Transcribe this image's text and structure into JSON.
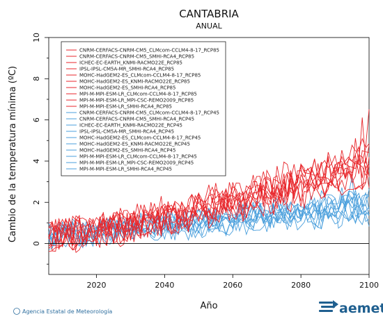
{
  "chart_data": {
    "type": "line",
    "title": "CANTABRIA",
    "subtitle": "ANUAL",
    "xlabel": "Año",
    "ylabel": "Cambio de la temperatura mínima (ºC)",
    "xlim": [
      2006,
      2100
    ],
    "ylim": [
      -1.5,
      10
    ],
    "xticks": [
      2020,
      2040,
      2060,
      2080,
      2100
    ],
    "yticks": [
      0,
      2,
      4,
      6,
      8,
      10
    ],
    "grid": false,
    "legend_position": "top-left",
    "reference_line_y": 0,
    "rcp85_color": "#e8262b",
    "rcp45_color": "#4a9fdc",
    "series": [
      {
        "name": "CNRM-CERFACS-CNRM-CM5_CLMcom-CCLM4-8-17_RCP85",
        "scenario": "rcp85",
        "start": 0.4,
        "end": 4.0,
        "peak": 5.2
      },
      {
        "name": "CNRM-CERFACS-CNRM-CM5_SMHI-RCA4_RCP85",
        "scenario": "rcp85",
        "start": 0.3,
        "end": 3.8,
        "peak": 5.0
      },
      {
        "name": "ICHEC-EC-EARTH_KNMI-RACMO22E_RCP85",
        "scenario": "rcp85",
        "start": 0.5,
        "end": 3.5,
        "peak": 4.8
      },
      {
        "name": "IPSL-IPSL-CM5A-MR_SMHI-RCA4_RCP85",
        "scenario": "rcp85",
        "start": 0.6,
        "end": 4.6,
        "peak": 6.7
      },
      {
        "name": "MOHC-HadGEM2-ES_CLMcom-CCLM4-8-17_RCP85",
        "scenario": "rcp85",
        "start": 0.4,
        "end": 4.2,
        "peak": 6.0
      },
      {
        "name": "MOHC-HadGEM2-ES_KNMI-RACMO22E_RCP85",
        "scenario": "rcp85",
        "start": 0.5,
        "end": 4.4,
        "peak": 5.9
      },
      {
        "name": "MOHC-HadGEM2-ES_SMHI-RCA4_RCP85",
        "scenario": "rcp85",
        "start": 0.4,
        "end": 4.1,
        "peak": 5.6
      },
      {
        "name": "MPI-M-MPI-ESM-LR_CLMcom-CCLM4-8-17_RCP85",
        "scenario": "rcp85",
        "start": 0.3,
        "end": 3.3,
        "peak": 4.6
      },
      {
        "name": "MPI-M-MPI-ESM-LR_MPI-CSC-REMO2009_RCP85",
        "scenario": "rcp85",
        "start": 0.3,
        "end": 3.4,
        "peak": 4.7
      },
      {
        "name": "MPI-M-MPI-ESM-LR_SMHI-RCA4_RCP85",
        "scenario": "rcp85",
        "start": 0.2,
        "end": 3.2,
        "peak": 4.4
      },
      {
        "name": "CNRM-CERFACS-CNRM-CM5_CLMcom-CCLM4-8-17_RCP45",
        "scenario": "rcp45",
        "start": 0.4,
        "end": 2.0,
        "peak": 2.6
      },
      {
        "name": "CNRM-CERFACS-CNRM-CM5_SMHI-RCA4_RCP45",
        "scenario": "rcp45",
        "start": 0.3,
        "end": 1.8,
        "peak": 2.4
      },
      {
        "name": "ICHEC-EC-EARTH_KNMI-RACMO22E_RCP45",
        "scenario": "rcp45",
        "start": 0.4,
        "end": 1.6,
        "peak": 2.3
      },
      {
        "name": "IPSL-IPSL-CM5A-MR_SMHI-RCA4_RCP45",
        "scenario": "rcp45",
        "start": 0.5,
        "end": 2.1,
        "peak": 2.9
      },
      {
        "name": "MOHC-HadGEM2-ES_CLMcom-CCLM4-8-17_RCP45",
        "scenario": "rcp45",
        "start": 0.4,
        "end": 2.2,
        "peak": 2.8
      },
      {
        "name": "MOHC-HadGEM2-ES_KNMI-RACMO22E_RCP45",
        "scenario": "rcp45",
        "start": 0.3,
        "end": 2.0,
        "peak": 2.7
      },
      {
        "name": "MOHC-HadGEM2-ES_SMHI-RCA4_RCP45",
        "scenario": "rcp45",
        "start": 0.3,
        "end": 1.9,
        "peak": 2.5
      },
      {
        "name": "MPI-M-MPI-ESM-LR_CLMcom-CCLM4-8-17_RCP45",
        "scenario": "rcp45",
        "start": 0.2,
        "end": 1.5,
        "peak": 2.1
      },
      {
        "name": "MPI-M-MPI-ESM-LR_MPI-CSC-REMO2009_RCP45",
        "scenario": "rcp45",
        "start": 0.2,
        "end": 1.4,
        "peak": 2.0
      },
      {
        "name": "MPI-M-MPI-ESM-LR_SMHI-RCA4_RCP45",
        "scenario": "rcp45",
        "start": 0.2,
        "end": 1.3,
        "peak": 1.9
      }
    ]
  },
  "footer": {
    "credit": "© Agencia Estatal de Meteorología",
    "logo_text": "aemet"
  }
}
